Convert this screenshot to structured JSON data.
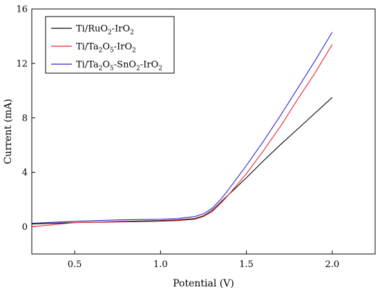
{
  "chart_data": {
    "type": "line",
    "title": "",
    "xlabel": "Potential (V)",
    "ylabel": "Current (mA)",
    "xlim": [
      0.25,
      2.25
    ],
    "ylim": [
      -2,
      16
    ],
    "x_ticks": [
      "0.5",
      "1.0",
      "1.5",
      "2.0"
    ],
    "y_ticks": [
      "0",
      "4",
      "8",
      "12",
      "16"
    ],
    "legend_position": "top-left",
    "series": [
      {
        "name": "Ti/RuO2-IrO2",
        "name_parts": [
          [
            "Ti/RuO",
            false
          ],
          [
            "2",
            true
          ],
          [
            "-IrO",
            false
          ],
          [
            "2",
            true
          ]
        ],
        "color": "#000000",
        "x": [
          0.25,
          0.5,
          0.75,
          1.0,
          1.1,
          1.2,
          1.25,
          1.3,
          1.35,
          1.4,
          1.5,
          1.6,
          1.7,
          1.8,
          1.9,
          2.0
        ],
        "y": [
          0.2,
          0.3,
          0.38,
          0.45,
          0.5,
          0.6,
          0.8,
          1.2,
          1.8,
          2.4,
          3.6,
          4.85,
          6.05,
          7.2,
          8.35,
          9.5
        ]
      },
      {
        "name": "Ti/Ta2O5-IrO2",
        "name_parts": [
          [
            "Ti/Ta",
            false
          ],
          [
            "2",
            true
          ],
          [
            "O",
            false
          ],
          [
            "5",
            true
          ],
          [
            "-IrO",
            false
          ],
          [
            "2",
            true
          ]
        ],
        "color": "#e8232a",
        "x": [
          0.25,
          0.5,
          0.75,
          1.0,
          1.1,
          1.2,
          1.25,
          1.3,
          1.35,
          1.4,
          1.5,
          1.6,
          1.7,
          1.8,
          1.9,
          2.0
        ],
        "y": [
          0.0,
          0.3,
          0.35,
          0.4,
          0.45,
          0.55,
          0.75,
          1.1,
          1.7,
          2.4,
          3.9,
          5.6,
          7.4,
          9.4,
          11.3,
          13.4
        ]
      },
      {
        "name": "Ti/Ta2O5-SnO2-IrO2",
        "name_parts": [
          [
            "Ti/Ta",
            false
          ],
          [
            "2",
            true
          ],
          [
            "O",
            false
          ],
          [
            "5",
            true
          ],
          [
            "-SnO",
            false
          ],
          [
            "2",
            true
          ],
          [
            "-IrO",
            false
          ],
          [
            "2",
            true
          ]
        ],
        "color": "#2a22d6",
        "x": [
          0.25,
          0.5,
          0.75,
          1.0,
          1.1,
          1.2,
          1.25,
          1.3,
          1.35,
          1.4,
          1.5,
          1.6,
          1.7,
          1.8,
          1.9,
          2.0
        ],
        "y": [
          0.25,
          0.4,
          0.5,
          0.55,
          0.6,
          0.75,
          0.95,
          1.35,
          2.0,
          2.8,
          4.5,
          6.3,
          8.2,
          10.2,
          12.2,
          14.3
        ]
      }
    ]
  }
}
